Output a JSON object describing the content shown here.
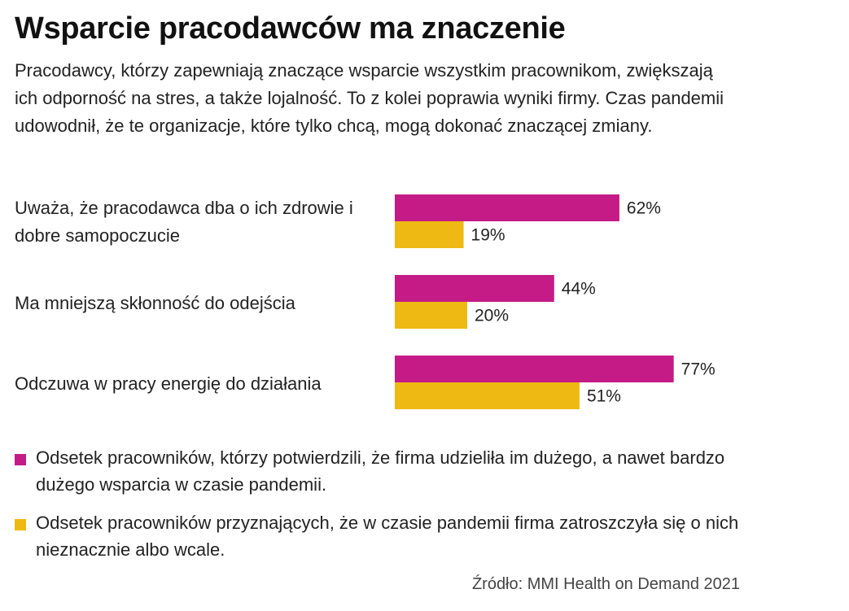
{
  "header": {
    "title": "Wsparcie pracodawców ma znaczenie",
    "lead": "Pracodawcy, którzy zapewniają znaczące wsparcie wszystkim pracownikom, zwiększają ich odporność na stres, a także lojalność. To z kolei poprawia wyniki firmy. Czas pandemii udowodnił, że te organizacje, które tylko chcą, mogą dokonać znaczącej zmiany."
  },
  "chart_data": {
    "type": "bar",
    "orientation": "horizontal",
    "categories": [
      "Uważa, że pracodawca dba o ich zdrowie i dobre samopoczucie",
      "Ma mniejszą skłonność do odejścia",
      "Odczuwa w pracy energię do działania"
    ],
    "series": [
      {
        "name": "Odsetek pracowników, którzy potwierdzili, że firma udzieliła im dużego, a nawet bardzo dużego wsparcia w czasie pandemii.",
        "color": "#c41b86",
        "values": [
          62,
          44,
          77
        ],
        "labels": [
          "62%",
          "44%",
          "77%"
        ]
      },
      {
        "name": "Odsetek pracowników przyznających, że w czasie pandemii firma zatroszczyła się o nich nieznacznie albo wcale.",
        "color": "#efb913",
        "values": [
          19,
          20,
          51
        ],
        "labels": [
          "19%",
          "20%",
          "51%"
        ]
      }
    ],
    "unit": "%",
    "xlim": [
      0,
      100
    ],
    "grid": false,
    "legend_position": "bottom"
  },
  "source": "Źródło: MMI Health on Demand 2021"
}
